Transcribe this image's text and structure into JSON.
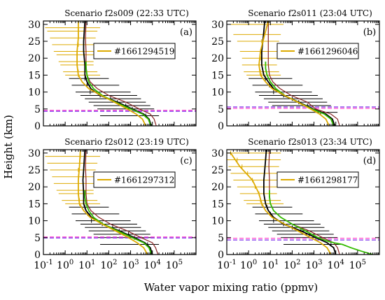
{
  "figure": {
    "ylabel": "Height (km)",
    "xlabel": "Water vapor mixing ratio (ppmv)"
  },
  "colors": {
    "black_profile": "#000000",
    "green_profile": "#33bb00",
    "red_profile": "#882222",
    "gold_profile": "#ddaa00",
    "tropopause_dashed": "#8844ee",
    "reference_dashed": "#ff44cc"
  },
  "chart_data": [
    {
      "type": "line",
      "title": "Scenario f2s009  (22:33 UTC)",
      "panel_label": "(a)",
      "legend": {
        "label": "#1661294519",
        "placement": "top-right"
      },
      "x_scale": "log",
      "xlim": [
        0.1,
        1000000
      ],
      "ylim": [
        0,
        31
      ],
      "x_ticks": [
        0.1,
        1,
        10,
        100,
        1000,
        10000,
        100000
      ],
      "y_ticks": [
        0,
        5,
        10,
        15,
        20,
        25,
        30
      ],
      "tropopause_km": 4.3,
      "reference_km": 4.6,
      "series": [
        {
          "role": "black",
          "x": [
            9000,
            7000,
            4000,
            1200,
            250,
            40,
            15,
            10,
            8,
            8,
            7,
            7,
            7.5,
            8
          ],
          "y": [
            0,
            2,
            3.5,
            5,
            7,
            9,
            11,
            13,
            15,
            18,
            22,
            25,
            28,
            31
          ]
        },
        {
          "role": "green",
          "x": [
            8500,
            6500,
            3500,
            1000,
            200,
            50,
            20,
            12,
            10,
            9,
            9
          ],
          "y": [
            0,
            2,
            3.5,
            5,
            7,
            9,
            11,
            13,
            15,
            17,
            19
          ]
        },
        {
          "role": "red",
          "x": [
            15000,
            12000,
            8000,
            2500,
            600,
            100,
            30,
            14,
            10,
            9,
            9,
            8.5,
            9
          ],
          "y": [
            0,
            2,
            3.5,
            5,
            7,
            9,
            11,
            13,
            15,
            18,
            22,
            26,
            31
          ]
        },
        {
          "role": "gold",
          "x": [
            5000,
            3500,
            1800,
            700,
            180,
            45,
            12,
            6,
            4,
            3.5,
            3.5,
            4,
            4
          ],
          "y": [
            0,
            2,
            3.5,
            5,
            7,
            9,
            11,
            13,
            15,
            18,
            22,
            26,
            31
          ]
        }
      ],
      "gold_errorbars": [
        {
          "y": 29,
          "x": 4,
          "lo": 0.12,
          "hi": 40
        },
        {
          "y": 28,
          "x": 4,
          "lo": 0.15,
          "hi": 30
        },
        {
          "y": 26,
          "x": 4,
          "lo": 0.2,
          "hi": 25
        },
        {
          "y": 24,
          "x": 4,
          "lo": 0.25,
          "hi": 25
        },
        {
          "y": 22,
          "x": 3.5,
          "lo": 0.3,
          "hi": 20
        },
        {
          "y": 21,
          "x": 3.5,
          "lo": 0.4,
          "hi": 20
        },
        {
          "y": 19,
          "x": 3.5,
          "lo": 0.5,
          "hi": 20
        },
        {
          "y": 18,
          "x": 3.5,
          "lo": 0.6,
          "hi": 20
        },
        {
          "y": 16,
          "x": 4,
          "lo": 0.8,
          "hi": 30
        },
        {
          "y": 15,
          "x": 4,
          "lo": 1,
          "hi": 40
        }
      ],
      "black_errorbars": [
        {
          "y": 14,
          "x": 8,
          "lo": 1.5,
          "hi": 100
        },
        {
          "y": 12,
          "x": 10,
          "lo": 2,
          "hi": 300
        },
        {
          "y": 10,
          "x": 14,
          "lo": 3,
          "hi": 1000
        },
        {
          "y": 9,
          "x": 40,
          "lo": 5,
          "hi": 2000
        },
        {
          "y": 8,
          "x": 120,
          "lo": 8,
          "hi": 3000
        },
        {
          "y": 7,
          "x": 250,
          "lo": 12,
          "hi": 5000
        },
        {
          "y": 6,
          "x": 600,
          "lo": 20,
          "hi": 8000
        },
        {
          "y": 5,
          "x": 1200,
          "lo": 30,
          "hi": 12000
        },
        {
          "y": 3,
          "x": 5000,
          "lo": 40,
          "hi": 20000
        }
      ]
    },
    {
      "type": "line",
      "title": "Scenario  f2s011 (23:04 UTC)",
      "panel_label": "(b)",
      "legend": {
        "label": "#1661296046",
        "placement": "top-right"
      },
      "x_scale": "log",
      "xlim": [
        0.1,
        1000000
      ],
      "ylim": [
        0,
        31
      ],
      "x_ticks": [
        0.1,
        1,
        10,
        100,
        1000,
        10000,
        100000
      ],
      "y_ticks": [
        0,
        5,
        10,
        15,
        20,
        25,
        30
      ],
      "tropopause_km": 5.6,
      "reference_km": 5.2,
      "series": [
        {
          "role": "black",
          "x": [
            9000,
            7000,
            3500,
            900,
            200,
            40,
            14,
            8,
            5,
            4,
            4,
            4.5,
            5,
            5.5
          ],
          "y": [
            0,
            2,
            3.5,
            5,
            7,
            9,
            11,
            13,
            15,
            18,
            22,
            25,
            28,
            31
          ]
        },
        {
          "role": "green",
          "x": [
            8000,
            6000,
            3000,
            800,
            180,
            45,
            18,
            10,
            7,
            6,
            6
          ],
          "y": [
            0,
            2,
            3.5,
            5,
            7,
            9,
            11,
            13,
            15,
            17,
            19
          ]
        },
        {
          "role": "red",
          "x": [
            15000,
            12000,
            6000,
            1200,
            500,
            90,
            28,
            13,
            9,
            8,
            8,
            8,
            8
          ],
          "y": [
            0,
            2,
            3.5,
            5,
            7,
            9,
            11,
            13,
            15,
            18,
            22,
            26,
            31
          ]
        },
        {
          "role": "gold",
          "x": [
            5000,
            3500,
            1800,
            700,
            180,
            45,
            12,
            6,
            3.5,
            3,
            3.5,
            5,
            8
          ],
          "y": [
            0,
            2,
            3.5,
            5,
            7,
            9,
            11,
            13,
            15,
            18,
            22,
            26,
            31
          ]
        }
      ],
      "gold_errorbars": [
        {
          "y": 30,
          "x": 8,
          "lo": 0.15,
          "hi": 40
        },
        {
          "y": 27,
          "x": 5,
          "lo": 0.2,
          "hi": 30
        },
        {
          "y": 25,
          "x": 4,
          "lo": 0.3,
          "hi": 25
        },
        {
          "y": 22,
          "x": 3.5,
          "lo": 0.4,
          "hi": 20
        },
        {
          "y": 20,
          "x": 3.5,
          "lo": 0.5,
          "hi": 20
        },
        {
          "y": 18,
          "x": 3,
          "lo": 0.5,
          "hi": 20
        },
        {
          "y": 16,
          "x": 3.5,
          "lo": 0.6,
          "hi": 25
        },
        {
          "y": 15,
          "x": 4,
          "lo": 0.8,
          "hi": 30
        }
      ],
      "black_errorbars": [
        {
          "y": 14,
          "x": 6,
          "lo": 1,
          "hi": 100
        },
        {
          "y": 12,
          "x": 9,
          "lo": 1.5,
          "hi": 300
        },
        {
          "y": 10,
          "x": 14,
          "lo": 2,
          "hi": 800
        },
        {
          "y": 9,
          "x": 40,
          "lo": 3,
          "hi": 1500
        },
        {
          "y": 8,
          "x": 100,
          "lo": 5,
          "hi": 2500
        },
        {
          "y": 7,
          "x": 200,
          "lo": 8,
          "hi": 4000
        },
        {
          "y": 6,
          "x": 500,
          "lo": 12,
          "hi": 6000
        },
        {
          "y": 4,
          "x": 2000,
          "lo": 25,
          "hi": 12000
        }
      ]
    },
    {
      "type": "line",
      "title": "Scenario f2s012  (23:19 UTC)",
      "panel_label": "(c)",
      "legend": {
        "label": "#1661297312",
        "placement": "top-right"
      },
      "x_scale": "log",
      "xlim": [
        0.1,
        1000000
      ],
      "ylim": [
        0,
        31
      ],
      "x_ticks": [
        0.1,
        1,
        10,
        100,
        1000,
        10000,
        100000
      ],
      "y_ticks": [
        0,
        5,
        10,
        15,
        20,
        25,
        30
      ],
      "tropopause_km": 4.9,
      "reference_km": 5.2,
      "series": [
        {
          "role": "black",
          "x": [
            10000,
            8000,
            4500,
            1500,
            300,
            50,
            16,
            9,
            7,
            7,
            6.5,
            7,
            7.5,
            8
          ],
          "y": [
            0,
            2,
            3.5,
            5,
            7,
            9,
            11,
            13,
            15,
            18,
            22,
            25,
            28,
            31
          ]
        },
        {
          "role": "green",
          "x": [
            9000,
            7000,
            4000,
            1200,
            250,
            55,
            20,
            12,
            9,
            8,
            8
          ],
          "y": [
            0,
            2,
            3.5,
            5,
            7,
            9,
            11,
            13,
            15,
            17,
            19
          ]
        },
        {
          "role": "red",
          "x": [
            18000,
            14000,
            10000,
            3000,
            700,
            120,
            35,
            15,
            10,
            9,
            9,
            8.5,
            9
          ],
          "y": [
            0,
            2,
            3.5,
            5,
            7,
            9,
            11,
            13,
            15,
            18,
            22,
            26,
            31
          ]
        },
        {
          "role": "gold",
          "x": [
            6000,
            4000,
            2000,
            800,
            200,
            50,
            14,
            7,
            4.5,
            4,
            4,
            4.5,
            5
          ],
          "y": [
            0,
            2,
            3.5,
            5,
            7,
            9,
            11,
            13,
            15,
            18,
            22,
            26,
            31
          ]
        }
      ],
      "gold_errorbars": [
        {
          "y": 29,
          "x": 5,
          "lo": 0.12,
          "hi": 40
        },
        {
          "y": 27,
          "x": 4.5,
          "lo": 0.15,
          "hi": 30
        },
        {
          "y": 25,
          "x": 4,
          "lo": 0.2,
          "hi": 25
        },
        {
          "y": 23,
          "x": 4,
          "lo": 0.25,
          "hi": 25
        },
        {
          "y": 21,
          "x": 4,
          "lo": 0.3,
          "hi": 20
        },
        {
          "y": 19,
          "x": 4,
          "lo": 0.4,
          "hi": 20
        },
        {
          "y": 18,
          "x": 4,
          "lo": 0.5,
          "hi": 20
        },
        {
          "y": 16,
          "x": 4.5,
          "lo": 0.7,
          "hi": 30
        },
        {
          "y": 15,
          "x": 4.5,
          "lo": 1,
          "hi": 40
        }
      ],
      "black_errorbars": [
        {
          "y": 14,
          "x": 8,
          "lo": 1.5,
          "hi": 100
        },
        {
          "y": 12,
          "x": 11,
          "lo": 2,
          "hi": 300
        },
        {
          "y": 10,
          "x": 16,
          "lo": 3,
          "hi": 1000
        },
        {
          "y": 9,
          "x": 50,
          "lo": 5,
          "hi": 2000
        },
        {
          "y": 8,
          "x": 150,
          "lo": 8,
          "hi": 3000
        },
        {
          "y": 7,
          "x": 300,
          "lo": 12,
          "hi": 5000
        },
        {
          "y": 6,
          "x": 800,
          "lo": 20,
          "hi": 8000
        },
        {
          "y": 5,
          "x": 1500,
          "lo": 30,
          "hi": 12000
        },
        {
          "y": 3,
          "x": 6000,
          "lo": 40,
          "hi": 20000
        }
      ]
    },
    {
      "type": "line",
      "title": "Scenario f2s013  (23:34 UTC)",
      "panel_label": "(d)",
      "legend": {
        "label": "#1661298177",
        "placement": "top-right"
      },
      "x_scale": "log",
      "xlim": [
        0.1,
        1000000
      ],
      "ylim": [
        0,
        31
      ],
      "x_ticks": [
        0.1,
        1,
        10,
        100,
        1000,
        10000,
        100000
      ],
      "y_ticks": [
        0,
        5,
        10,
        15,
        20,
        25,
        30
      ],
      "tropopause_km": 4.3,
      "reference_km": 4.8,
      "series": [
        {
          "role": "black",
          "x": [
            10000,
            8000,
            4000,
            1200,
            250,
            40,
            14,
            8,
            6,
            5,
            5,
            5.5,
            6,
            6.5
          ],
          "y": [
            0,
            2,
            3.5,
            5,
            7,
            9,
            11,
            13,
            15,
            18,
            22,
            25,
            28,
            31
          ]
        },
        {
          "role": "green",
          "x": [
            500000,
            150000,
            50000,
            20000,
            8000,
            4000,
            1500,
            400,
            100,
            30,
            14,
            10,
            9,
            9
          ],
          "y": [
            0,
            1,
            2,
            3,
            3.5,
            4,
            5,
            7,
            9,
            11,
            13,
            15,
            17,
            19
          ]
        },
        {
          "role": "red",
          "x": [
            15000,
            12000,
            8000,
            2500,
            600,
            100,
            30,
            14,
            10,
            9,
            9,
            8.5,
            9
          ],
          "y": [
            0,
            2,
            3.5,
            5,
            7,
            9,
            11,
            13,
            15,
            18,
            22,
            26,
            31
          ]
        },
        {
          "role": "gold",
          "x": [
            6000,
            4000,
            2000,
            700,
            180,
            45,
            12,
            6,
            4,
            3,
            1.5,
            0.4,
            0.15
          ],
          "y": [
            0,
            2,
            3.5,
            5,
            7,
            9,
            11,
            13,
            15,
            18,
            22,
            26,
            30
          ]
        }
      ],
      "gold_errorbars": [
        {
          "y": 30,
          "x": 0.15,
          "lo": 0.1,
          "hi": 30
        },
        {
          "y": 28,
          "x": 0.3,
          "lo": 0.1,
          "hi": 30
        },
        {
          "y": 26,
          "x": 0.5,
          "lo": 0.12,
          "hi": 25
        },
        {
          "y": 24,
          "x": 0.9,
          "lo": 0.15,
          "hi": 25
        },
        {
          "y": 22,
          "x": 1.5,
          "lo": 0.2,
          "hi": 20
        },
        {
          "y": 20,
          "x": 2,
          "lo": 0.3,
          "hi": 20
        },
        {
          "y": 18,
          "x": 3,
          "lo": 0.4,
          "hi": 20
        },
        {
          "y": 16,
          "x": 3.5,
          "lo": 0.6,
          "hi": 30
        },
        {
          "y": 15,
          "x": 4,
          "lo": 0.8,
          "hi": 40
        }
      ],
      "black_errorbars": [
        {
          "y": 14,
          "x": 7,
          "lo": 1.5,
          "hi": 100
        },
        {
          "y": 12,
          "x": 10,
          "lo": 2,
          "hi": 300
        },
        {
          "y": 10,
          "x": 14,
          "lo": 3,
          "hi": 1000
        },
        {
          "y": 9,
          "x": 40,
          "lo": 5,
          "hi": 2000
        },
        {
          "y": 8,
          "x": 100,
          "lo": 8,
          "hi": 3000
        },
        {
          "y": 7,
          "x": 250,
          "lo": 12,
          "hi": 5000
        },
        {
          "y": 6,
          "x": 600,
          "lo": 20,
          "hi": 8000
        },
        {
          "y": 5,
          "x": 1200,
          "lo": 30,
          "hi": 12000
        },
        {
          "y": 3,
          "x": 6000,
          "lo": 40,
          "hi": 20000
        }
      ]
    }
  ]
}
